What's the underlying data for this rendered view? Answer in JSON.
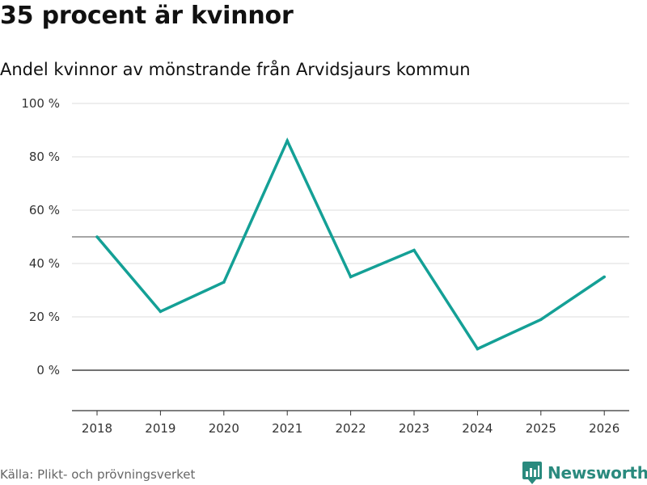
{
  "title": "35 procent är kvinnor",
  "subtitle": "Andel kvinnor av mönstrande från Arvidsjaurs kommun",
  "source": "Källa: Plikt- och prövningsverket",
  "brand": "Newsworthy",
  "colors": {
    "line": "#14a096",
    "grid": "#dddddd",
    "reference": "#888888",
    "zero": "#444444",
    "axis": "#333333",
    "brand": "#2a8a7e"
  },
  "chart_data": {
    "type": "line",
    "title": "35 procent är kvinnor",
    "subtitle": "Andel kvinnor av mönstrande från Arvidsjaurs kommun",
    "xlabel": "",
    "ylabel": "",
    "x": [
      2018,
      2019,
      2020,
      2021,
      2022,
      2023,
      2024,
      2025,
      2026
    ],
    "series": [
      {
        "name": "Andel kvinnor",
        "values": [
          50,
          22,
          33,
          86,
          35,
          45,
          8,
          19,
          35
        ]
      }
    ],
    "ylim": [
      -15,
      100
    ],
    "yticks": [
      0,
      20,
      40,
      60,
      80,
      100
    ],
    "ytick_labels": [
      "0 %",
      "20 %",
      "40 %",
      "60 %",
      "80 %",
      "100 %"
    ],
    "reference_line": 50,
    "grid": true,
    "legend": "none"
  }
}
